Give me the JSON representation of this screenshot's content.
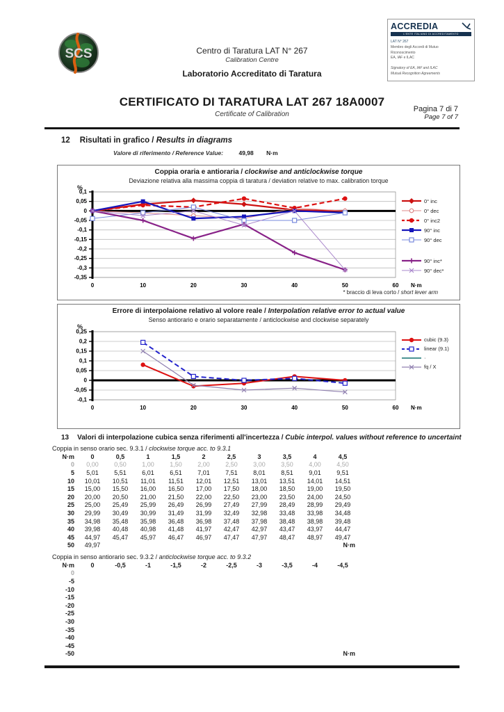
{
  "header": {
    "logo_text": "SCS",
    "centre_line1": "Centro di Taratura LAT N° 267",
    "centre_line2": "Calibration Centre",
    "centre_line3": "Laboratorio Accreditato di Taratura",
    "accredia": {
      "brand": "ACCREDIA",
      "bar_text": "L'ENTE ITALIANO DI ACCREDITAMENTO",
      "lat": "LAT N° 267",
      "member_lines": [
        "Membro degli Accordi di Mutuo",
        "Riconoscimento",
        "EA, IAF e ILAC"
      ],
      "signatory_lines": [
        "Signatory of EA, IAF and ILAC",
        "Mutual Recognition Agreements"
      ]
    },
    "title": "CERTIFICATO DI TARATURA LAT 267  18A0007",
    "subtitle": "Certificate of Calibration",
    "page_it": "Pagina 7 di 7",
    "page_en": "Page 7 of 7"
  },
  "section12": {
    "number": "12",
    "heading_it": "Risultati in grafico /",
    "heading_en": "Results in diagrams",
    "reference_label": "Valore di riferimento / Reference Value:",
    "reference_value": "49,98",
    "reference_unit": "N·m",
    "footnote_it": "* braccio di leva corto /",
    "footnote_en": "short lever arm"
  },
  "chart_data": [
    {
      "type": "line",
      "title_it": "Coppia oraria e antioraria /",
      "title_en": "clockwise and anticlockwise torque",
      "subtitle": "Deviazione relativa alla massima coppia di taratura / deviation relative to max. calibration torque",
      "ylabel": "%",
      "xlabel": "N·m",
      "x": [
        0,
        10,
        20,
        30,
        40,
        50
      ],
      "xticks": [
        0,
        10,
        20,
        30,
        40,
        50,
        60
      ],
      "xlim": [
        0,
        60
      ],
      "ylim": [
        -0.35,
        0.1
      ],
      "yticks": [
        0.1,
        0.05,
        0,
        -0.05,
        -0.1,
        -0.15,
        -0.2,
        -0.25,
        -0.3,
        -0.35
      ],
      "grid": "horizontal",
      "legend_position": "right",
      "series": [
        {
          "name": "0° inc",
          "color": "#cc1111",
          "dash": "",
          "width": 2.2,
          "marker": "diamond",
          "values": [
            0,
            0.035,
            0.055,
            0.035,
            0.005,
            0
          ]
        },
        {
          "name": "0° dec",
          "color": "#dd8888",
          "dash": "",
          "width": 1,
          "marker": "circle-open",
          "values": [
            0,
            -0.01,
            -0.025,
            -0.04,
            0.015,
            0
          ]
        },
        {
          "name": "0° inc2",
          "color": "#dd1111",
          "dash": "7,4",
          "width": 2.2,
          "marker": "circle",
          "values": [
            0,
            0.03,
            0.02,
            0.065,
            0.015,
            0.065
          ]
        },
        {
          "name": "90° inc",
          "color": "#1515bb",
          "dash": "",
          "width": 2.2,
          "marker": "square",
          "values": [
            0,
            0.05,
            -0.04,
            -0.03,
            0,
            -0.01
          ]
        },
        {
          "name": "90° dec",
          "color": "#7788dd",
          "dash": "",
          "width": 1,
          "marker": "square-open",
          "values": [
            -0.04,
            -0.01,
            0.02,
            -0.05,
            -0.05,
            -0.01
          ],
          "gap_after": true
        },
        {
          "name": "90° inc*",
          "color": "#882288",
          "dash": "",
          "width": 2.2,
          "marker": "plus",
          "values": [
            0,
            -0.05,
            -0.145,
            -0.07,
            -0.22,
            -0.31
          ]
        },
        {
          "name": "90° dec*",
          "color": "#aa88cc",
          "dash": "",
          "width": 1,
          "marker": "x",
          "values": [
            0,
            -0.025,
            0,
            -0.075,
            0,
            -0.31
          ]
        }
      ]
    },
    {
      "type": "line",
      "title_it": "Errore di interpolaione relativo al volore reale /",
      "title_en": "Interpolation relative error to actual value",
      "subtitle": "Senso antiorario e orario separatamente / anticlockwise and clockwise separately",
      "ylabel": "%",
      "xlabel": "N·m",
      "x": [
        10,
        20,
        30,
        40,
        50
      ],
      "xticks": [
        0,
        10,
        20,
        30,
        40,
        50,
        60
      ],
      "xlim": [
        0,
        60
      ],
      "ylim": [
        -0.1,
        0.25
      ],
      "yticks": [
        0.25,
        0.2,
        0.15,
        0.1,
        0.05,
        0,
        -0.05,
        -0.1
      ],
      "grid": "horizontal",
      "legend_position": "right",
      "series": [
        {
          "name": "cubic (9.3)",
          "color": "#dd1111",
          "dash": "",
          "width": 2,
          "marker": "circle",
          "values": [
            0.08,
            -0.03,
            -0.015,
            0.02,
            0
          ]
        },
        {
          "name": "linear (9.1)",
          "color": "#2222cc",
          "dash": "7,4",
          "width": 2,
          "marker": "square-open",
          "values": [
            0.195,
            0.02,
            0,
            0.01,
            -0.015
          ]
        },
        {
          "name": "·",
          "color": "#117070",
          "dash": "",
          "width": 1.5,
          "marker": "none",
          "values": []
        },
        {
          "name": "fq / X",
          "color": "#9080b0",
          "dash": "",
          "width": 1.2,
          "marker": "x",
          "values": [
            0.15,
            -0.025,
            -0.05,
            -0.04,
            -0.06
          ]
        }
      ]
    }
  ],
  "section13": {
    "number": "13",
    "heading_it": "Valori di interpolazione cubica senza riferimenti all'incertezza /",
    "heading_en": "Cubic interpol. values without reference to uncertaint",
    "cw_caption_it": "Coppia in senso orario sec. 9.3.1 /",
    "cw_caption_en": "clockwise torque acc. to 9.3.1",
    "ccw_caption_it": "Coppia in senso antiorario sec. 9.3.2 /",
    "ccw_caption_en": "anticlockwise torque acc. to 9.3.2",
    "unit": "N·m",
    "cw_table": {
      "corner": "N·m",
      "col_header": [
        "0",
        "0,5",
        "1",
        "1,5",
        "2",
        "2,5",
        "3",
        "3,5",
        "4",
        "4,5"
      ],
      "rows": [
        {
          "label": "0",
          "gray": true,
          "cells": [
            "0,00",
            "0,50",
            "1,00",
            "1,50",
            "2,00",
            "2,50",
            "3,00",
            "3,50",
            "4,00",
            "4,50"
          ]
        },
        {
          "label": "5",
          "gray": false,
          "cells": [
            "5,01",
            "5,51",
            "6,01",
            "6,51",
            "7,01",
            "7,51",
            "8,01",
            "8,51",
            "9,01",
            "9,51"
          ]
        },
        {
          "label": "10",
          "gray": false,
          "cells": [
            "10,01",
            "10,51",
            "11,01",
            "11,51",
            "12,01",
            "12,51",
            "13,01",
            "13,51",
            "14,01",
            "14,51"
          ]
        },
        {
          "label": "15",
          "gray": false,
          "cells": [
            "15,00",
            "15,50",
            "16,00",
            "16,50",
            "17,00",
            "17,50",
            "18,00",
            "18,50",
            "19,00",
            "19,50"
          ]
        },
        {
          "label": "20",
          "gray": false,
          "cells": [
            "20,00",
            "20,50",
            "21,00",
            "21,50",
            "22,00",
            "22,50",
            "23,00",
            "23,50",
            "24,00",
            "24,50"
          ]
        },
        {
          "label": "25",
          "gray": false,
          "cells": [
            "25,00",
            "25,49",
            "25,99",
            "26,49",
            "26,99",
            "27,49",
            "27,99",
            "28,49",
            "28,99",
            "29,49"
          ]
        },
        {
          "label": "30",
          "gray": false,
          "cells": [
            "29,99",
            "30,49",
            "30,99",
            "31,49",
            "31,99",
            "32,49",
            "32,98",
            "33,48",
            "33,98",
            "34,48"
          ]
        },
        {
          "label": "35",
          "gray": false,
          "cells": [
            "34,98",
            "35,48",
            "35,98",
            "36,48",
            "36,98",
            "37,48",
            "37,98",
            "38,48",
            "38,98",
            "39,48"
          ]
        },
        {
          "label": "40",
          "gray": false,
          "cells": [
            "39,98",
            "40,48",
            "40,98",
            "41,48",
            "41,97",
            "42,47",
            "42,97",
            "43,47",
            "43,97",
            "44,47"
          ]
        },
        {
          "label": "45",
          "gray": false,
          "cells": [
            "44,97",
            "45,47",
            "45,97",
            "46,47",
            "46,97",
            "47,47",
            "47,97",
            "48,47",
            "48,97",
            "49,47"
          ]
        },
        {
          "label": "50",
          "gray": false,
          "cells": [
            "49,97",
            "",
            "",
            "",
            "",
            "",
            "",
            "",
            "",
            ""
          ],
          "unit_at_end": true
        }
      ]
    },
    "ccw_table": {
      "corner": "N·m",
      "col_header": [
        "0",
        "-0,5",
        "-1",
        "-1,5",
        "-2",
        "-2,5",
        "-3",
        "-3,5",
        "-4",
        "-4,5"
      ],
      "rows": [
        {
          "label": "0",
          "gray": true,
          "cells": [
            "",
            "",
            "",
            "",
            "",
            "",
            "",
            "",
            "",
            ""
          ]
        },
        {
          "label": "-5",
          "gray": false,
          "cells": [
            "",
            "",
            "",
            "",
            "",
            "",
            "",
            "",
            "",
            ""
          ]
        },
        {
          "label": "-10",
          "gray": false,
          "cells": [
            "",
            "",
            "",
            "",
            "",
            "",
            "",
            "",
            "",
            ""
          ]
        },
        {
          "label": "-15",
          "gray": false,
          "cells": [
            "",
            "",
            "",
            "",
            "",
            "",
            "",
            "",
            "",
            ""
          ]
        },
        {
          "label": "-20",
          "gray": false,
          "cells": [
            "",
            "",
            "",
            "",
            "",
            "",
            "",
            "",
            "",
            ""
          ]
        },
        {
          "label": "-25",
          "gray": false,
          "cells": [
            "",
            "",
            "",
            "",
            "",
            "",
            "",
            "",
            "",
            ""
          ]
        },
        {
          "label": "-30",
          "gray": false,
          "cells": [
            "",
            "",
            "",
            "",
            "",
            "",
            "",
            "",
            "",
            ""
          ]
        },
        {
          "label": "-35",
          "gray": false,
          "cells": [
            "",
            "",
            "",
            "",
            "",
            "",
            "",
            "",
            "",
            ""
          ]
        },
        {
          "label": "-40",
          "gray": false,
          "cells": [
            "",
            "",
            "",
            "",
            "",
            "",
            "",
            "",
            "",
            ""
          ]
        },
        {
          "label": "-45",
          "gray": false,
          "cells": [
            "",
            "",
            "",
            "",
            "",
            "",
            "",
            "",
            "",
            ""
          ]
        },
        {
          "label": "-50",
          "gray": false,
          "cells": [
            "",
            "",
            "",
            "",
            "",
            "",
            "",
            "",
            "",
            ""
          ],
          "unit_at_end": true
        }
      ]
    }
  }
}
